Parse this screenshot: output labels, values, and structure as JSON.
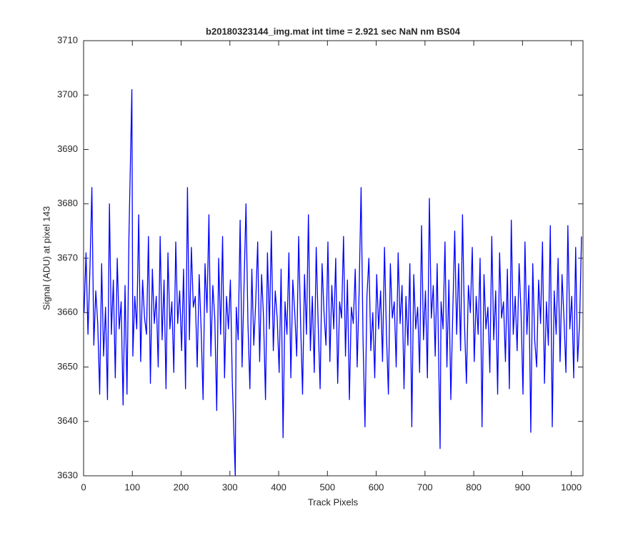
{
  "chart_data": {
    "type": "line",
    "title": "b20180323144_img.mat int time = 2.921 sec  NaN nm BS04",
    "x_label": "Track Pixels",
    "y_label": "Signal (ADU) at pixel 143",
    "xlim": [
      0,
      1024
    ],
    "xticks": [
      0,
      100,
      200,
      300,
      400,
      500,
      600,
      700,
      800,
      900,
      1000
    ],
    "ylim": [
      3630,
      3710
    ],
    "yticks": [
      3630,
      3640,
      3650,
      3660,
      3670,
      3680,
      3690,
      3700,
      3710
    ],
    "series": [
      {
        "color": "#0000ff",
        "x": [
          1,
          5,
          9,
          13,
          17,
          21,
          25,
          29,
          33,
          37,
          41,
          45,
          49,
          53,
          57,
          61,
          65,
          69,
          73,
          77,
          81,
          85,
          89,
          93,
          99,
          101,
          105,
          109,
          113,
          117,
          121,
          125,
          129,
          133,
          137,
          141,
          145,
          149,
          153,
          157,
          161,
          165,
          169,
          173,
          177,
          181,
          185,
          189,
          193,
          197,
          201,
          205,
          209,
          213,
          217,
          221,
          225,
          229,
          233,
          237,
          241,
          245,
          249,
          253,
          257,
          261,
          265,
          269,
          273,
          277,
          281,
          285,
          289,
          293,
          297,
          301,
          305,
          311,
          313,
          317,
          321,
          325,
          329,
          333,
          337,
          341,
          345,
          349,
          353,
          357,
          361,
          365,
          369,
          373,
          377,
          381,
          385,
          389,
          393,
          397,
          401,
          405,
          409,
          413,
          417,
          421,
          425,
          429,
          433,
          437,
          441,
          445,
          449,
          453,
          457,
          461,
          465,
          469,
          473,
          477,
          481,
          485,
          489,
          493,
          497,
          501,
          505,
          509,
          513,
          517,
          521,
          525,
          529,
          533,
          537,
          541,
          545,
          549,
          553,
          557,
          561,
          565,
          569,
          573,
          577,
          581,
          585,
          589,
          593,
          597,
          601,
          605,
          609,
          613,
          617,
          621,
          625,
          629,
          633,
          637,
          641,
          645,
          649,
          653,
          657,
          661,
          665,
          669,
          673,
          677,
          681,
          685,
          689,
          693,
          697,
          701,
          705,
          709,
          713,
          717,
          721,
          725,
          731,
          733,
          737,
          741,
          745,
          749,
          753,
          757,
          761,
          765,
          769,
          773,
          777,
          781,
          785,
          789,
          793,
          797,
          801,
          805,
          809,
          813,
          817,
          821,
          825,
          829,
          833,
          837,
          841,
          845,
          849,
          853,
          857,
          861,
          865,
          869,
          873,
          877,
          881,
          885,
          889,
          893,
          897,
          901,
          905,
          909,
          913,
          917,
          921,
          925,
          929,
          933,
          937,
          941,
          945,
          949,
          953,
          957,
          961,
          965,
          969,
          973,
          977,
          981,
          985,
          989,
          993,
          997,
          1001,
          1005,
          1009,
          1013,
          1017,
          1021
        ],
        "values": [
          3660,
          3671,
          3656,
          3668,
          3683,
          3654,
          3664,
          3658,
          3645,
          3669,
          3652,
          3661,
          3644,
          3680,
          3656,
          3666,
          3648,
          3670,
          3657,
          3662,
          3643,
          3665,
          3645,
          3674,
          3701,
          3652,
          3663,
          3657,
          3678,
          3651,
          3666,
          3659,
          3656,
          3674,
          3647,
          3668,
          3658,
          3663,
          3650,
          3674,
          3655,
          3666,
          3646,
          3671,
          3657,
          3662,
          3649,
          3673,
          3658,
          3664,
          3653,
          3668,
          3646,
          3683,
          3655,
          3672,
          3661,
          3663,
          3650,
          3667,
          3657,
          3644,
          3669,
          3660,
          3678,
          3652,
          3665,
          3659,
          3642,
          3670,
          3656,
          3674,
          3648,
          3663,
          3657,
          3666,
          3647,
          3630,
          3661,
          3655,
          3677,
          3650,
          3665,
          3680,
          3658,
          3646,
          3668,
          3654,
          3662,
          3673,
          3651,
          3667,
          3659,
          3644,
          3671,
          3657,
          3675,
          3653,
          3664,
          3659,
          3649,
          3668,
          3637,
          3662,
          3656,
          3671,
          3648,
          3666,
          3660,
          3652,
          3674,
          3658,
          3645,
          3667,
          3656,
          3678,
          3653,
          3663,
          3649,
          3672,
          3658,
          3646,
          3669,
          3660,
          3654,
          3673,
          3651,
          3665,
          3657,
          3670,
          3647,
          3662,
          3659,
          3674,
          3652,
          3666,
          3644,
          3661,
          3658,
          3668,
          3650,
          3664,
          3683,
          3655,
          3639,
          3663,
          3670,
          3653,
          3660,
          3648,
          3667,
          3657,
          3664,
          3651,
          3672,
          3656,
          3645,
          3669,
          3659,
          3662,
          3650,
          3671,
          3658,
          3665,
          3646,
          3663,
          3654,
          3669,
          3639,
          3667,
          3657,
          3661,
          3649,
          3676,
          3655,
          3664,
          3648,
          3681,
          3659,
          3665,
          3652,
          3669,
          3635,
          3662,
          3657,
          3673,
          3650,
          3666,
          3644,
          3660,
          3675,
          3656,
          3669,
          3653,
          3678,
          3658,
          3647,
          3665,
          3660,
          3672,
          3651,
          3663,
          3656,
          3670,
          3639,
          3667,
          3657,
          3661,
          3649,
          3674,
          3655,
          3664,
          3645,
          3671,
          3659,
          3662,
          3651,
          3668,
          3646,
          3677,
          3656,
          3663,
          3653,
          3669,
          3660,
          3645,
          3673,
          3656,
          3665,
          3638,
          3669,
          3655,
          3650,
          3666,
          3658,
          3673,
          3647,
          3662,
          3654,
          3676,
          3639,
          3664,
          3656,
          3670,
          3651,
          3667,
          3659,
          3649,
          3676,
          3657,
          3663,
          3648,
          3672,
          3651,
          3658,
          3674
        ]
      }
    ]
  }
}
